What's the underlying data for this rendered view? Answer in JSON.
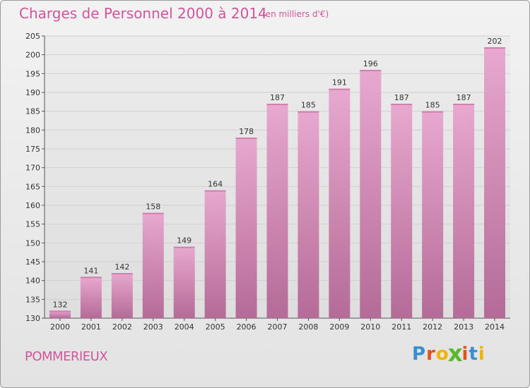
{
  "header": {
    "title": "Charges de Personnel 2000 à 2014",
    "subtitle": "(en milliers d'€)"
  },
  "footer": {
    "commune": "POMMERIEUX",
    "logo_letters": [
      "P",
      "r",
      "o",
      "x",
      "i",
      "t",
      "i"
    ]
  },
  "colors": {
    "title": "#d0559a",
    "bar_top": "#e8a8cf",
    "bar_bottom": "#b46b97",
    "grid": "#d0d0d0",
    "logo": [
      "#3a8fd0",
      "#e8501e",
      "#f0b400",
      "#5ab82e",
      "#e8501e",
      "#3a8fd0",
      "#f0b400"
    ]
  },
  "chart_data": {
    "type": "bar",
    "categories": [
      "2000",
      "2001",
      "2002",
      "2003",
      "2004",
      "2005",
      "2006",
      "2007",
      "2008",
      "2009",
      "2010",
      "2011",
      "2012",
      "2013",
      "2014"
    ],
    "values": [
      132,
      141,
      142,
      158,
      149,
      164,
      178,
      187,
      185,
      191,
      196,
      187,
      185,
      187,
      202
    ],
    "ylim": [
      130,
      205
    ],
    "yticks": [
      130,
      135,
      140,
      145,
      150,
      155,
      160,
      165,
      170,
      175,
      180,
      185,
      190,
      195,
      200,
      205
    ],
    "grid": true,
    "data_labels": true
  }
}
